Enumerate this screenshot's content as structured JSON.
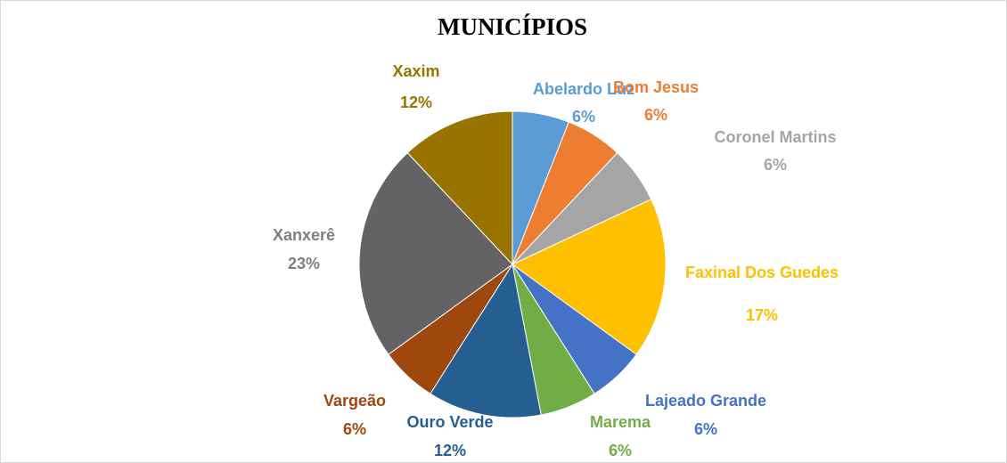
{
  "chart_data": {
    "type": "pie",
    "title": "MUNICÍPIOS",
    "categories": [
      "Abelardo Luz",
      "Bom Jesus",
      "Coronel Martins",
      "Faxinal Dos Guedes",
      "Lajeado Grande",
      "Marema",
      "Ouro Verde",
      "Vargeão",
      "Xanxerê",
      "Xaxim"
    ],
    "values": [
      6,
      6,
      6,
      17,
      6,
      6,
      12,
      6,
      23,
      12
    ],
    "value_labels": [
      "6%",
      "6%",
      "6%",
      "17%",
      "6%",
      "6%",
      "12%",
      "6%",
      "23%",
      "12%"
    ],
    "colors": [
      "#5b9bd5",
      "#ed7d31",
      "#a5a5a5",
      "#ffc000",
      "#4472c4",
      "#70ad47",
      "#255e91",
      "#9e480e",
      "#636363",
      "#997300"
    ]
  }
}
